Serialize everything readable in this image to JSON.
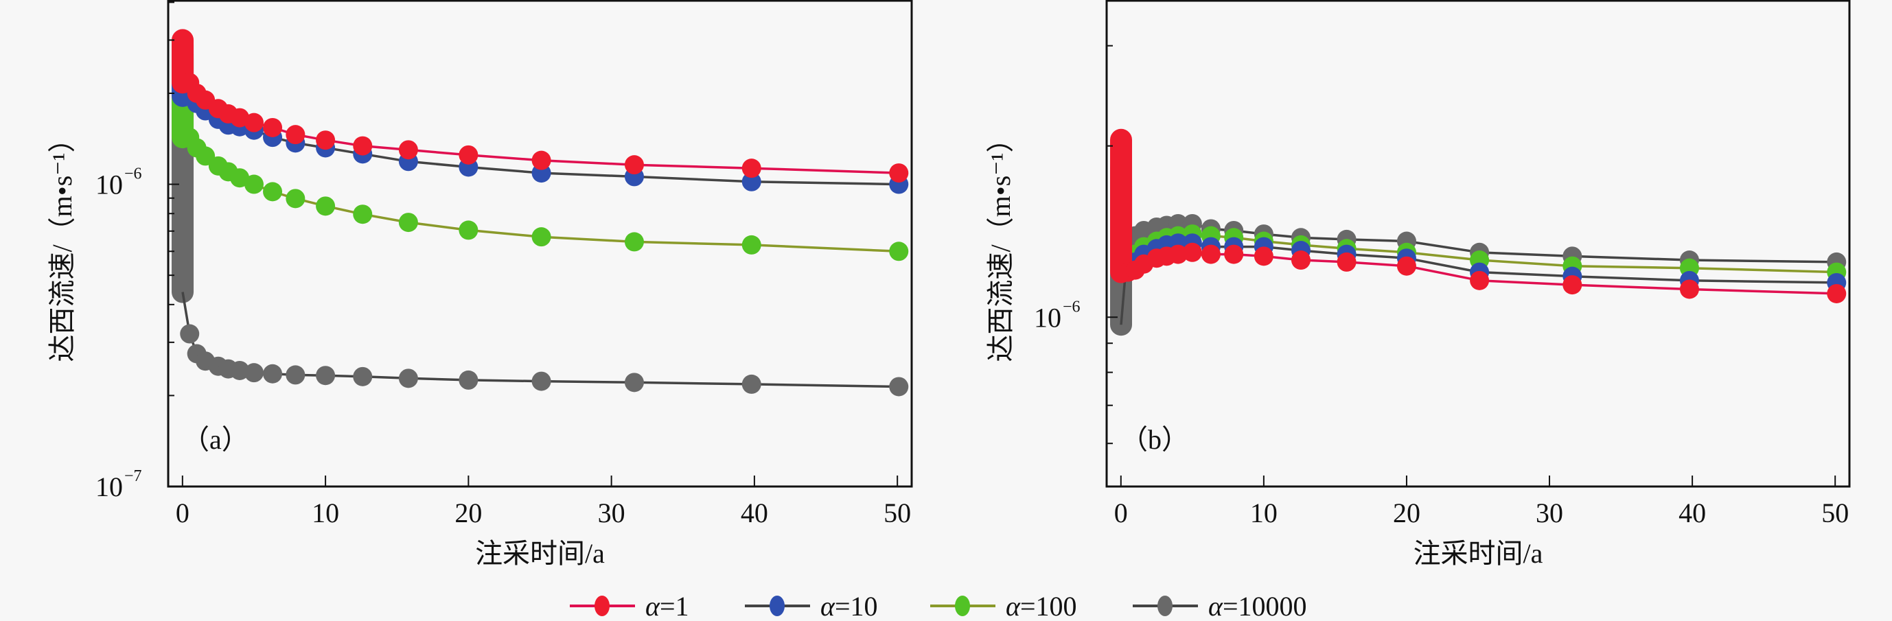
{
  "figure": {
    "legend": {
      "position": "bottom-center",
      "entries": [
        {
          "label_sym": "α",
          "label_rest": "=1",
          "color": "#ee1c2e"
        },
        {
          "label_sym": "α",
          "label_rest": "=10",
          "color": "#2e4fb0"
        },
        {
          "label_sym": "α",
          "label_rest": "=100",
          "color": "#52c225"
        },
        {
          "label_sym": "α",
          "label_rest": "=10000",
          "color": "#696969"
        }
      ]
    }
  },
  "chart_data": [
    {
      "type": "line",
      "panel_label": "（a）",
      "xlabel": "注采时间/a",
      "ylabel": "达西流速/（m•s⁻¹）",
      "xlim": [
        -1.0,
        51.0
      ],
      "xticks": [
        0,
        10,
        20,
        30,
        40,
        50
      ],
      "xtick_labels": [
        "0",
        "10",
        "20",
        "30",
        "40",
        "50"
      ],
      "yscale": "log",
      "ylim": [
        1e-07,
        4.05e-06
      ],
      "yticks_major": [
        {
          "value": 1e-06,
          "base": "10",
          "exp": "−6"
        },
        {
          "value": 1e-07,
          "base": "10",
          "exp": "−7"
        }
      ],
      "yticks_minor": [
        2e-07,
        3e-07,
        4e-07,
        5e-07,
        6e-07,
        7e-07,
        8e-07,
        9e-07,
        2e-06,
        3e-06,
        4e-06
      ],
      "grid": false,
      "x": [
        0.01,
        0.5,
        1.0,
        1.6,
        2.5,
        3.2,
        4.0,
        5.0,
        6.3,
        7.9,
        10.0,
        12.6,
        15.8,
        20.0,
        25.1,
        31.6,
        39.8,
        50.1
      ],
      "series": [
        {
          "name": "α=1",
          "color": "#ee1c2e",
          "values": [
            3e-06,
            2.17e-06,
            2e-06,
            1.9e-06,
            1.78e-06,
            1.71e-06,
            1.66e-06,
            1.6e-06,
            1.54e-06,
            1.46e-06,
            1.4e-06,
            1.34e-06,
            1.3e-06,
            1.25e-06,
            1.2e-06,
            1.16e-06,
            1.13e-06,
            1.09e-06
          ]
        },
        {
          "name": "α=10",
          "color": "#2e4fb0",
          "values": [
            2.9e-06,
            1.96e-06,
            1.85e-06,
            1.75e-06,
            1.64e-06,
            1.57e-06,
            1.55e-06,
            1.51e-06,
            1.43e-06,
            1.37e-06,
            1.32e-06,
            1.26e-06,
            1.19e-06,
            1.14e-06,
            1.09e-06,
            1.06e-06,
            1.02e-06,
            1e-06
          ]
        },
        {
          "name": "α=100",
          "color": "#52c225",
          "values": [
            2.7e-06,
            1.43e-06,
            1.32e-06,
            1.24e-06,
            1.15e-06,
            1.1e-06,
            1.05e-06,
            1e-06,
            9.45e-07,
            8.97e-07,
            8.47e-07,
            7.96e-07,
            7.48e-07,
            7.05e-07,
            6.7e-07,
            6.45e-07,
            6.3e-07,
            6e-07
          ]
        },
        {
          "name": "α=10000",
          "color": "#696969",
          "values": [
            2.6e-06,
            3.2e-07,
            2.75e-07,
            2.6e-07,
            2.5e-07,
            2.45e-07,
            2.42e-07,
            2.38e-07,
            2.36e-07,
            2.34e-07,
            2.33e-07,
            2.31e-07,
            2.28e-07,
            2.25e-07,
            2.23e-07,
            2.21e-07,
            2.18e-07,
            2.14e-07
          ],
          "spike_min": 4.4e-07
        }
      ]
    },
    {
      "type": "line",
      "panel_label": "（b）",
      "xlabel": "注采时间/a",
      "ylabel": "达西流速/（m•s⁻¹）",
      "xlim": [
        -1.0,
        51.0
      ],
      "xticks": [
        0,
        10,
        20,
        30,
        40,
        50
      ],
      "xtick_labels": [
        "0",
        "10",
        "20",
        "30",
        "40",
        "50"
      ],
      "yscale": "log",
      "ylim": [
        5.04e-07,
        3.6e-06
      ],
      "yticks_major": [
        {
          "value": 1e-06,
          "base": "10",
          "exp": "−6"
        }
      ],
      "yticks_minor": [
        6e-07,
        7e-07,
        8e-07,
        9e-07,
        2e-06,
        3e-06
      ],
      "grid": false,
      "x": [
        0.01,
        0.5,
        1.0,
        1.6,
        2.5,
        3.2,
        4.0,
        5.0,
        6.3,
        7.9,
        10.0,
        12.6,
        15.8,
        20.0,
        25.1,
        31.6,
        39.8,
        50.1
      ],
      "series": [
        {
          "name": "α=1",
          "color": "#ee1c2e",
          "values": [
            2.05e-06,
            1.2e-06,
            1.21e-06,
            1.24e-06,
            1.27e-06,
            1.28e-06,
            1.29e-06,
            1.3e-06,
            1.29e-06,
            1.29e-06,
            1.28e-06,
            1.26e-06,
            1.25e-06,
            1.23e-06,
            1.16e-06,
            1.14e-06,
            1.12e-06,
            1.1e-06
          ]
        },
        {
          "name": "α=10",
          "color": "#2e4fb0",
          "values": [
            1.84e-06,
            1.22e-06,
            1.25e-06,
            1.29e-06,
            1.32e-06,
            1.34e-06,
            1.35e-06,
            1.35e-06,
            1.33e-06,
            1.33e-06,
            1.33e-06,
            1.31e-06,
            1.29e-06,
            1.27e-06,
            1.2e-06,
            1.18e-06,
            1.16e-06,
            1.15e-06
          ]
        },
        {
          "name": "α=100",
          "color": "#52c225",
          "values": [
            1.76e-06,
            1.25e-06,
            1.29e-06,
            1.33e-06,
            1.36e-06,
            1.38e-06,
            1.39e-06,
            1.4e-06,
            1.39e-06,
            1.38e-06,
            1.36e-06,
            1.34e-06,
            1.32e-06,
            1.3e-06,
            1.26e-06,
            1.23e-06,
            1.22e-06,
            1.2e-06
          ]
        },
        {
          "name": "α=10000",
          "color": "#696969",
          "values": [
            1.7e-06,
            1.35e-06,
            1.39e-06,
            1.42e-06,
            1.44e-06,
            1.45e-06,
            1.46e-06,
            1.46e-06,
            1.43e-06,
            1.42e-06,
            1.4e-06,
            1.38e-06,
            1.37e-06,
            1.36e-06,
            1.3e-06,
            1.28e-06,
            1.26e-06,
            1.25e-06
          ],
          "spike_min": 9.7e-07
        }
      ]
    }
  ]
}
